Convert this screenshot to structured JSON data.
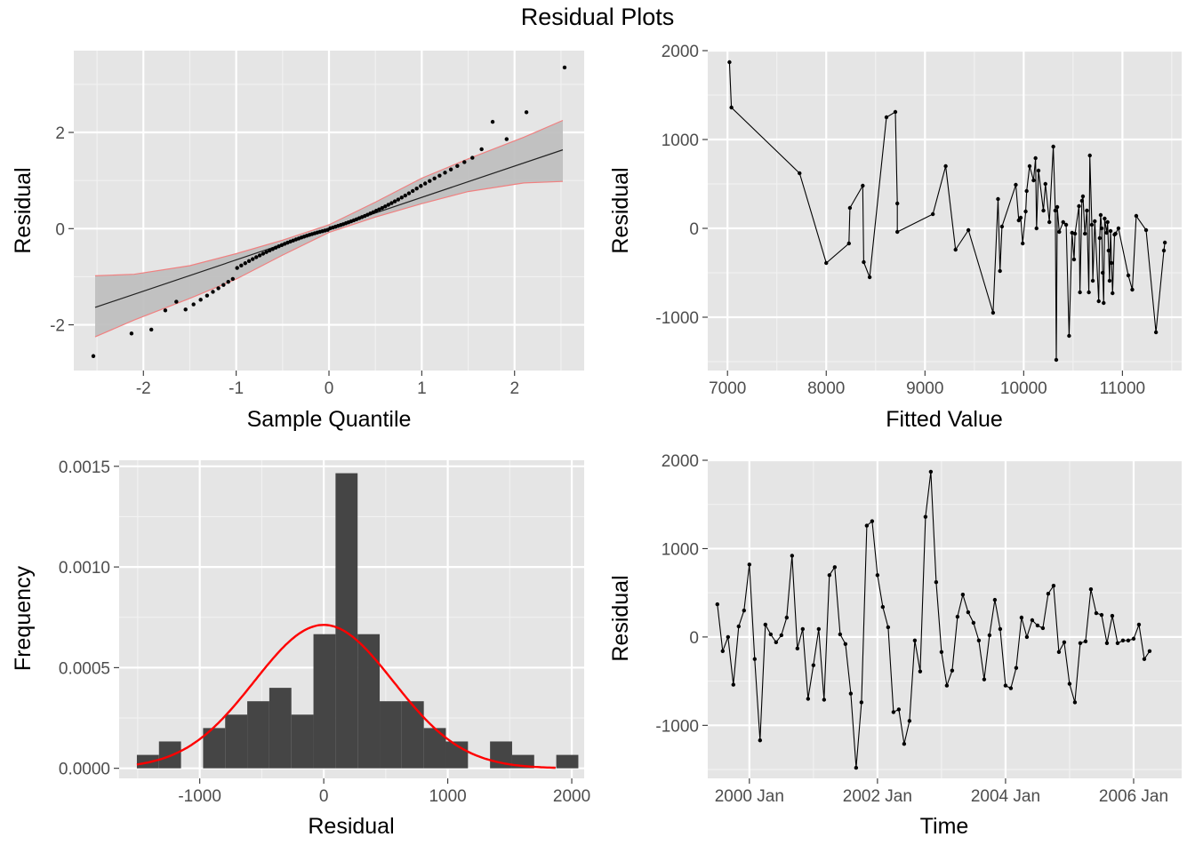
{
  "title": "Residual Plots",
  "colors": {
    "panel": "#e5e5e5",
    "grid_major": "#ffffff",
    "grid_minor": "#f2f2f2",
    "points": "#000000",
    "bars": "#454545",
    "normal_curve": "#ff0000",
    "band": "#bdbdbd",
    "band_edge": "#f08080"
  },
  "chart_data": [
    {
      "id": "qq",
      "type": "scatter",
      "xlabel": "Sample Quantile",
      "ylabel": "Residual",
      "xlim": [
        -2.75,
        2.75
      ],
      "ylim": [
        -2.95,
        3.7
      ],
      "xticks": [
        -2,
        -1,
        0,
        1,
        2
      ],
      "xtick_labels": [
        "-2",
        "-1",
        "0",
        "1",
        "2"
      ],
      "yticks": [
        -2,
        0,
        2
      ],
      "ytick_labels": [
        "-2",
        "0",
        "2"
      ],
      "n": 90,
      "reference_line": {
        "slope": 0.65,
        "intercept": 0.0
      },
      "confidence_band": {
        "x": [
          -2.52,
          -2.1,
          -1.5,
          -1.0,
          -0.5,
          0,
          0.5,
          1.0,
          1.5,
          2.1,
          2.52
        ],
        "lower": [
          -2.25,
          -1.9,
          -1.45,
          -1.05,
          -0.55,
          -0.08,
          0.24,
          0.52,
          0.77,
          0.95,
          0.98
        ],
        "upper": [
          -0.98,
          -0.95,
          -0.77,
          -0.52,
          -0.24,
          0.08,
          0.55,
          1.05,
          1.45,
          1.9,
          2.25
        ]
      },
      "extreme_points": {
        "x": [
          -2.52,
          -2.1,
          -1.88,
          -1.77,
          -1.64,
          1.62,
          1.74,
          1.86,
          2.1,
          2.52
        ],
        "y": [
          -2.65,
          -2.18,
          -2.1,
          -1.7,
          -1.52,
          1.65,
          2.22,
          2.35,
          2.42,
          3.35
        ]
      },
      "y_range": [
        -2.65,
        3.35
      ],
      "data_note": "sorted standardized residuals vs normal quantiles"
    },
    {
      "id": "fitted",
      "type": "line",
      "xlabel": "Fitted Value",
      "ylabel": "Residual",
      "xlim": [
        6800,
        11600
      ],
      "ylim": [
        -1600,
        2000
      ],
      "xticks": [
        7000,
        8000,
        9000,
        10000,
        11000
      ],
      "xtick_labels": [
        "7000",
        "8000",
        "9000",
        "10000",
        "11000"
      ],
      "yticks": [
        -1000,
        0,
        1000,
        2000
      ],
      "ytick_labels": [
        "-1000",
        "0",
        "1000",
        "2000"
      ],
      "x": [
        7020,
        7040,
        7730,
        8000,
        8230,
        8240,
        8370,
        8380,
        8440,
        8610,
        8700,
        8720,
        8720,
        9080,
        9210,
        9310,
        9440,
        9690,
        9740,
        9760,
        9780,
        9920,
        9950,
        9970,
        9990,
        10020,
        10030,
        10060,
        10100,
        10120,
        10130,
        10150,
        10200,
        10220,
        10260,
        10300,
        10320,
        10330,
        10340,
        10360,
        10400,
        10430,
        10460,
        10490,
        10510,
        10520,
        10560,
        10570,
        10590,
        10600,
        10620,
        10640,
        10660,
        10670,
        10690,
        10700,
        10720,
        10760,
        10770,
        10780,
        10790,
        10800,
        10810,
        10820,
        10840,
        10850,
        10860,
        10870,
        10880,
        10890,
        10900,
        10920,
        10930,
        10960,
        11060,
        11100,
        11140,
        11240,
        11340,
        11420,
        11430
      ],
      "y": [
        1870,
        1360,
        620,
        -390,
        -170,
        230,
        480,
        -380,
        -550,
        1250,
        1310,
        280,
        -40,
        160,
        700,
        -240,
        -20,
        -950,
        330,
        -480,
        20,
        490,
        90,
        120,
        -170,
        190,
        420,
        700,
        540,
        790,
        0,
        650,
        200,
        500,
        70,
        920,
        200,
        -1480,
        240,
        -40,
        70,
        40,
        -1210,
        -50,
        -350,
        -60,
        250,
        -720,
        310,
        360,
        -60,
        200,
        -720,
        820,
        40,
        -590,
        80,
        -820,
        -110,
        150,
        0,
        -500,
        -840,
        110,
        -50,
        70,
        -250,
        -590,
        -30,
        -390,
        -730,
        -70,
        -60,
        0,
        -530,
        -690,
        140,
        -20,
        -1170,
        -250,
        -160
      ]
    },
    {
      "id": "hist",
      "type": "bar",
      "xlabel": "Residual",
      "ylabel": "Frequency",
      "xlim": [
        -1650,
        2100
      ],
      "ylim": [
        -5e-05,
        0.00153
      ],
      "xticks": [
        -1000,
        0,
        1000,
        2000
      ],
      "xtick_labels": [
        "-1000",
        "0",
        "1000",
        "2000"
      ],
      "yticks": [
        0,
        0.0005,
        0.001,
        0.0015
      ],
      "ytick_labels": [
        "0.0000",
        "0.0005",
        "0.0010",
        "0.0015"
      ],
      "bin_width": 178,
      "bin_starts": [
        -1507,
        -1329,
        -1151,
        -973,
        -795,
        -617,
        -439,
        -261,
        -83,
        95,
        273,
        451,
        629,
        807,
        985,
        1163,
        1341,
        1519,
        1697,
        1875
      ],
      "values": [
        6.66e-05,
        0.0001333,
        0,
        0.0001999,
        0.0002665,
        0.0003331,
        0.0003997,
        0.0002665,
        0.0006662,
        0.0014657,
        0.0006662,
        0.0003331,
        0.0003331,
        0.0001999,
        0.0001333,
        0,
        0.0001333,
        6.66e-05,
        0,
        6.66e-05
      ],
      "normal_curve": {
        "mean": 0,
        "sd": 560,
        "xrange": [
          -1507,
          1870
        ]
      }
    },
    {
      "id": "time",
      "type": "line",
      "xlabel": "Time",
      "ylabel": "Residual",
      "xlim": [
        1999.35,
        2006.75
      ],
      "ylim": [
        -1600,
        2000
      ],
      "xticks": [
        2000,
        2002,
        2004,
        2006
      ],
      "xtick_labels": [
        "2000 Jan",
        "2002 Jan",
        "2004 Jan",
        "2006 Jan"
      ],
      "xminor": [
        1999,
        2001,
        2003,
        2005
      ],
      "yticks": [
        -1000,
        0,
        1000,
        2000
      ],
      "ytick_labels": [
        "-1000",
        "0",
        "1000",
        "2000"
      ],
      "x_start": 1999.5,
      "x_step": 0.08333,
      "y": [
        370,
        -160,
        0,
        -540,
        120,
        300,
        820,
        -250,
        -1170,
        140,
        30,
        -60,
        20,
        220,
        920,
        -130,
        90,
        -700,
        -320,
        90,
        -710,
        700,
        790,
        30,
        -80,
        -640,
        -1480,
        -740,
        1260,
        1310,
        700,
        340,
        110,
        -850,
        -820,
        -1210,
        -950,
        -40,
        -390,
        1360,
        1870,
        620,
        -170,
        -550,
        -380,
        230,
        480,
        280,
        160,
        -40,
        -480,
        20,
        420,
        90,
        -550,
        -580,
        -350,
        220,
        0,
        190,
        130,
        100,
        490,
        580,
        -170,
        -60,
        -530,
        -740,
        -70,
        -50,
        540,
        270,
        250,
        -70,
        240,
        -70,
        -40,
        -40,
        -20,
        140,
        -250,
        -160
      ]
    }
  ]
}
